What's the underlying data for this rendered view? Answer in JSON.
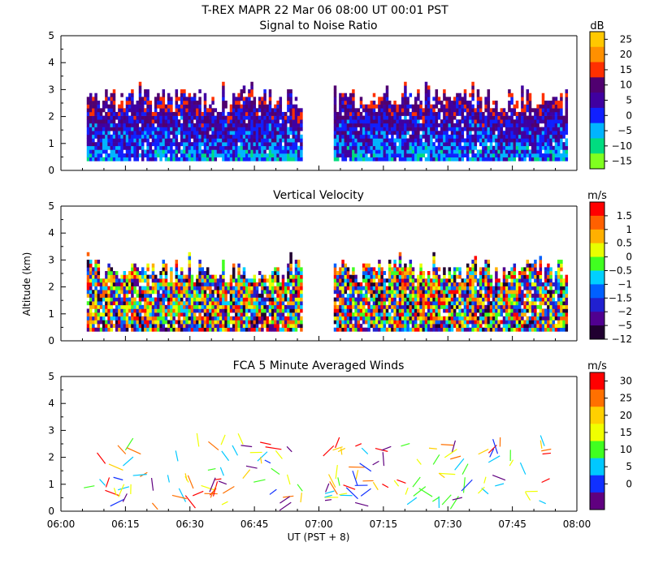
{
  "figure": {
    "title": "T-REX   MAPR 22 Mar 06   08:00 UT   00:01   PST",
    "xlabel": "UT  (PST + 8)",
    "ylabel": "Altitude (km)",
    "x_ticks": [
      "06:00",
      "06:15",
      "06:30",
      "06:45",
      "07:00",
      "07:15",
      "07:30",
      "07:45",
      "08:00"
    ],
    "y_ticks": [
      "0",
      "1",
      "2",
      "3",
      "4",
      "5"
    ]
  },
  "chart_data": [
    {
      "type": "heatmap",
      "title": "Signal to Noise Ratio",
      "unit": "dB",
      "xlabel": "UT  (PST + 8)",
      "ylabel": "Altitude (km)",
      "x_range_minutes_from_0600": [
        0,
        120
      ],
      "ylim": [
        0,
        5
      ],
      "data_gap_minutes": [
        56,
        63
      ],
      "echo_top_km_approx": 3,
      "colorbar_labels": [
        "25",
        "20",
        "15",
        "10",
        "5",
        "0",
        "−5",
        "−10",
        "−15"
      ],
      "colorbar_colors": [
        "#ffc800",
        "#ff9000",
        "#ff3000",
        "#500070",
        "#4000a0",
        "#1020ff",
        "#00b4ff",
        "#00dc80",
        "#80ff20"
      ]
    },
    {
      "type": "heatmap",
      "title": "Vertical Velocity",
      "unit": "m/s",
      "xlabel": "UT  (PST + 8)",
      "ylabel": "Altitude (km)",
      "x_range_minutes_from_0600": [
        0,
        120
      ],
      "ylim": [
        0,
        5
      ],
      "data_gap_minutes": [
        56,
        63
      ],
      "echo_top_km_approx": 3,
      "colorbar_labels": [
        "1.5",
        "1",
        "0.5",
        "0",
        "−0.5",
        "−1",
        "−1.5",
        "−2",
        "−5",
        "−12"
      ],
      "colorbar_colors": [
        "#ff0000",
        "#ff6000",
        "#ffb000",
        "#e8ff00",
        "#40ff20",
        "#00d0ff",
        "#0060ff",
        "#2020d0",
        "#500090",
        "#200030"
      ]
    },
    {
      "type": "scatter",
      "title": "FCA 5 Minute Averaged Winds",
      "unit": "m/s",
      "xlabel": "UT  (PST + 8)",
      "ylabel": "Altitude (km)",
      "x_range_minutes_from_0600": [
        0,
        120
      ],
      "ylim": [
        0,
        5
      ],
      "colorbar_labels": [
        "30",
        "25",
        "20",
        "15",
        "10",
        "5",
        "0"
      ],
      "colorbar_colors": [
        "#ff0000",
        "#ff7000",
        "#ffd000",
        "#f0ff00",
        "#40ff20",
        "#00c8ff",
        "#1030ff",
        "#600080"
      ]
    }
  ]
}
